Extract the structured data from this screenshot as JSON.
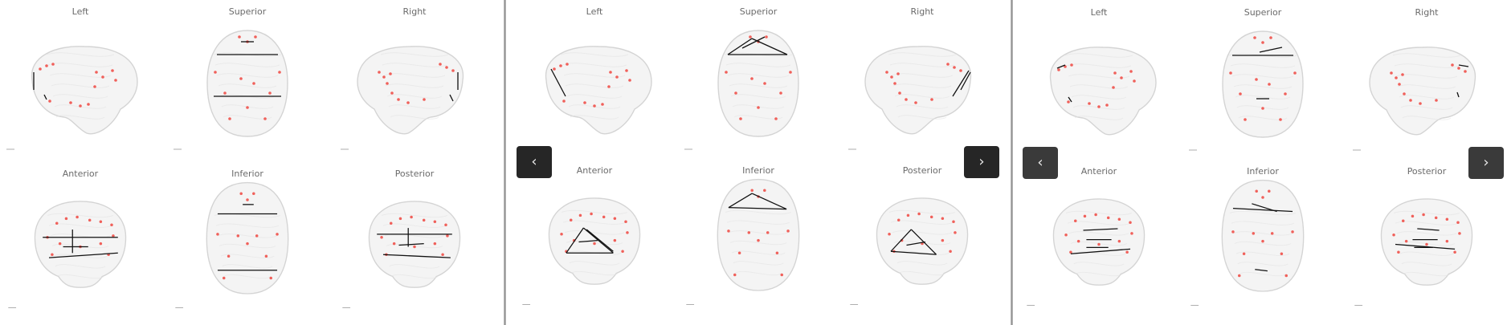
{
  "panels": [
    {
      "views": [
        {
          "label": "Left"
        },
        {
          "label": "Superior"
        },
        {
          "label": "Right"
        },
        {
          "label": "Anterior"
        },
        {
          "label": "Inferior"
        },
        {
          "label": "Posterior"
        }
      ]
    },
    {
      "views": [
        {
          "label": "Left"
        },
        {
          "label": "Superior"
        },
        {
          "label": "Right"
        },
        {
          "label": "Anterior"
        },
        {
          "label": "Inferior"
        },
        {
          "label": "Posterior"
        }
      ],
      "prev_button": {
        "glyph": "‹",
        "icon": "chevron-left-icon"
      },
      "next_button": {
        "glyph": "›",
        "icon": "chevron-right-icon"
      }
    },
    {
      "views": [
        {
          "label": "Left"
        },
        {
          "label": "Superior"
        },
        {
          "label": "Right"
        },
        {
          "label": "Anterior"
        },
        {
          "label": "Inferior"
        },
        {
          "label": "Posterior"
        }
      ],
      "prev_button": {
        "glyph": "‹",
        "icon": "chevron-left-icon"
      },
      "next_button": {
        "glyph": "›",
        "icon": "chevron-right-icon"
      }
    }
  ],
  "colors": {
    "node": "#f0605a",
    "edge": "#111111",
    "brain_outline": "#d4d4d4",
    "brain_fill": "#f4f4f4",
    "nav_button": "#262626",
    "label": "#6a6a6a"
  }
}
